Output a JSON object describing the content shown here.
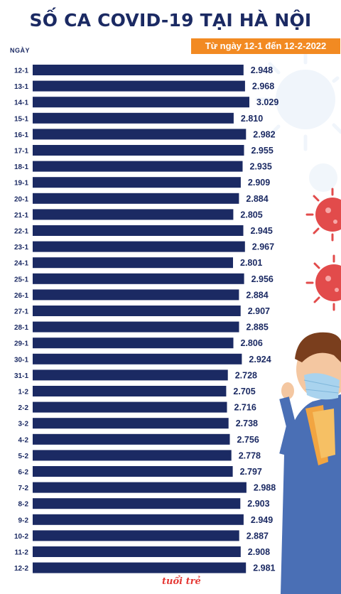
{
  "header": {
    "title": "SỐ CA COVID-19 TẠI HÀ NỘI",
    "subtitle": "Từ ngày 12-1 đến 12-2-2022"
  },
  "brand": {
    "logo": "tuổi trẻ"
  },
  "colors": {
    "bar": "#1b2a63",
    "accent": "#f28a22",
    "virus_red": "#e24b4b",
    "virus_blue": "#dfe9f6"
  },
  "chart_data": {
    "type": "bar",
    "orientation": "horizontal",
    "title": "SỐ CA COVID-19 TẠI HÀ NỘI",
    "subtitle": "Từ ngày 12-1 đến 12-2-2022",
    "ylabel": "NGÀY",
    "xlim": [
      0,
      3029
    ],
    "grid": false,
    "categories": [
      "12-1",
      "13-1",
      "14-1",
      "15-1",
      "16-1",
      "17-1",
      "18-1",
      "19-1",
      "20-1",
      "21-1",
      "22-1",
      "23-1",
      "24-1",
      "25-1",
      "26-1",
      "27-1",
      "28-1",
      "29-1",
      "30-1",
      "31-1",
      "1-2",
      "2-2",
      "3-2",
      "4-2",
      "5-2",
      "6-2",
      "7-2",
      "8-2",
      "9-2",
      "10-2",
      "11-2",
      "12-2"
    ],
    "values": [
      2948,
      2968,
      3029,
      2810,
      2982,
      2955,
      2935,
      2909,
      2884,
      2805,
      2945,
      2967,
      2801,
      2956,
      2884,
      2907,
      2885,
      2806,
      2924,
      2728,
      2705,
      2716,
      2738,
      2756,
      2778,
      2797,
      2988,
      2903,
      2949,
      2887,
      2908,
      2981
    ],
    "labels": [
      "2.948",
      "2.968",
      "3.029",
      "2.810",
      "2.982",
      "2.955",
      "2.935",
      "2.909",
      "2.884",
      "2.805",
      "2.945",
      "2.967",
      "2.801",
      "2.956",
      "2.884",
      "2.907",
      "2.885",
      "2.806",
      "2.924",
      "2.728",
      "2.705",
      "2.716",
      "2.738",
      "2.756",
      "2.778",
      "2.797",
      "2.988",
      "2.903",
      "2.949",
      "2.887",
      "2.908",
      "2.981"
    ]
  }
}
